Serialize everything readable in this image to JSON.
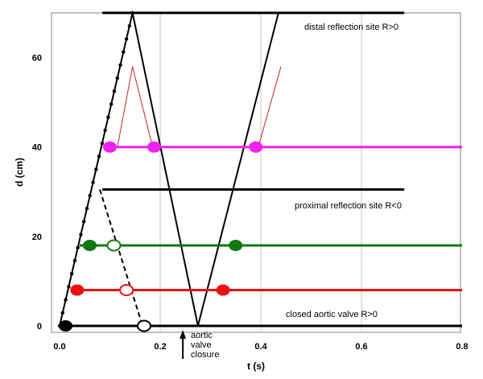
{
  "chart_data": {
    "type": "line",
    "xlabel": "t (s)",
    "ylabel": "d (cm)",
    "xlim": [
      0.0,
      0.8
    ],
    "ylim": [
      0,
      70
    ],
    "xticks": [
      "0.0",
      "0.2",
      "0.4",
      "0.6",
      "0.8"
    ],
    "yticks": [
      "0",
      "20",
      "40",
      "60"
    ],
    "grid": "vertical",
    "colors": {
      "green": "#117711",
      "magenta": "#ee22ee",
      "red": "#ee1111",
      "black": "#000000",
      "thin_red": "#cc2222"
    },
    "annotations": [
      {
        "text": "distal reflection site R>0"
      },
      {
        "text": "proximal reflection site R<0"
      },
      {
        "text": "closed aortic valve R>0"
      },
      {
        "text": "aortic"
      },
      {
        "text": "valve"
      },
      {
        "text": "closure"
      }
    ],
    "site_lines": [
      {
        "color": "black",
        "x": [
          0.085,
          0.685
        ],
        "y": 70
      },
      {
        "color": "black",
        "x": [
          0.085,
          0.685
        ],
        "y": 30.5
      },
      {
        "color": "black",
        "x": [
          0.0,
          0.8
        ],
        "y": 0
      }
    ],
    "level_lines": [
      {
        "color": "magenta",
        "x": [
          0.09,
          0.8
        ],
        "y": 40
      },
      {
        "color": "green",
        "x": [
          0.04,
          0.8
        ],
        "y": 18
      },
      {
        "color": "red",
        "x": [
          0.03,
          0.8
        ],
        "y": 8
      }
    ],
    "wave_lines": [
      {
        "color": "black",
        "dotted_markers": true,
        "x": [
          0.0,
          0.145
        ],
        "y": [
          0,
          70
        ]
      },
      {
        "color": "black",
        "x": [
          0.145,
          0.275
        ],
        "y": [
          70,
          0
        ]
      },
      {
        "color": "black",
        "x": [
          0.275,
          0.435
        ],
        "y": [
          0,
          70
        ]
      },
      {
        "color": "black",
        "dashed": true,
        "x": [
          0.08,
          0.165
        ],
        "y": [
          30.5,
          0
        ]
      },
      {
        "color": "thin_red",
        "x": [
          0.115,
          0.145,
          0.185
        ],
        "y": [
          40,
          58,
          40
        ]
      },
      {
        "color": "thin_red",
        "x": [
          0.395,
          0.44
        ],
        "y": [
          40,
          58
        ]
      }
    ],
    "points": [
      {
        "x": 0.012,
        "y": 0,
        "color": "black",
        "filled": true
      },
      {
        "x": 0.168,
        "y": 0,
        "color": "black",
        "filled": false
      },
      {
        "x": 0.035,
        "y": 8,
        "color": "red",
        "filled": true
      },
      {
        "x": 0.133,
        "y": 8,
        "color": "red",
        "filled": false
      },
      {
        "x": 0.325,
        "y": 8,
        "color": "red",
        "filled": true
      },
      {
        "x": 0.06,
        "y": 18,
        "color": "green",
        "filled": true
      },
      {
        "x": 0.108,
        "y": 18,
        "color": "green",
        "filled": false
      },
      {
        "x": 0.35,
        "y": 18,
        "color": "green",
        "filled": true
      },
      {
        "x": 0.1,
        "y": 40,
        "color": "magenta",
        "filled": true
      },
      {
        "x": 0.188,
        "y": 40,
        "color": "magenta",
        "filled": true
      },
      {
        "x": 0.39,
        "y": 40,
        "color": "magenta",
        "filled": true
      }
    ],
    "arrow": {
      "x": 0.245
    }
  }
}
